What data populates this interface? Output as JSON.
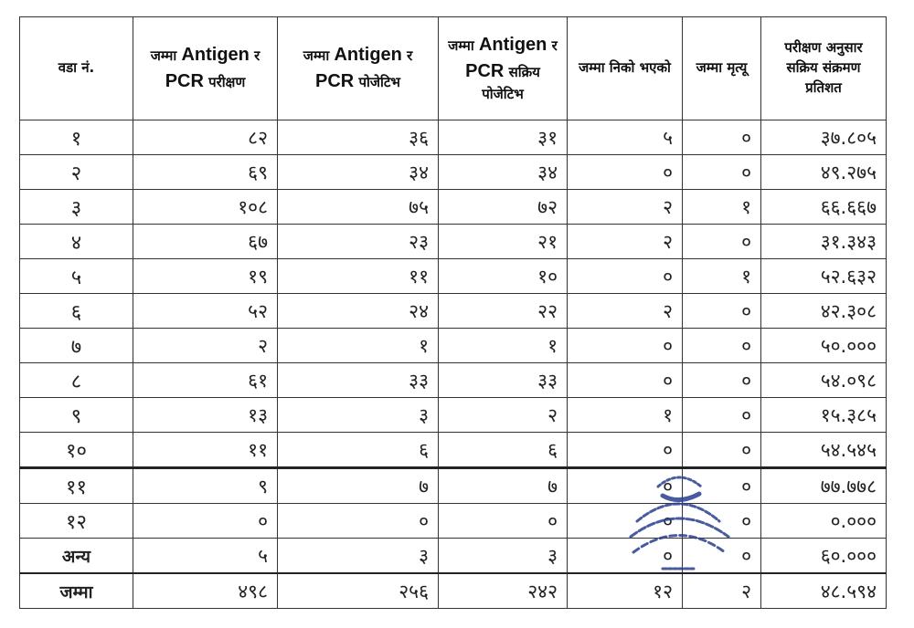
{
  "headers": [
    "वडा नं.",
    "जम्मा Antigen र PCR परीक्षण",
    "जम्मा Antigen र PCR पोजेटिभ",
    "जम्मा Antigen र PCR सक्रिय पोजेटिभ",
    "जम्मा निको भएको",
    "जम्मा मृत्यू",
    "परीक्षण अनुसार सक्रिय संक्रमण प्रतिशत"
  ],
  "rows": [
    [
      "१",
      "८२",
      "३६",
      "३१",
      "५",
      "०",
      "३७.८०५"
    ],
    [
      "२",
      "६९",
      "३४",
      "३४",
      "०",
      "०",
      "४९.२७५"
    ],
    [
      "३",
      "१०८",
      "७५",
      "७२",
      "२",
      "१",
      "६६.६६७"
    ],
    [
      "४",
      "६७",
      "२३",
      "२१",
      "२",
      "०",
      "३१.३४३"
    ],
    [
      "५",
      "१९",
      "११",
      "१०",
      "०",
      "१",
      "५२.६३२"
    ],
    [
      "६",
      "५२",
      "२४",
      "२२",
      "२",
      "०",
      "४२.३०८"
    ],
    [
      "७",
      "२",
      "१",
      "१",
      "०",
      "०",
      "५०.०००"
    ],
    [
      "८",
      "६१",
      "३३",
      "३३",
      "०",
      "०",
      "५४.०९८"
    ],
    [
      "९",
      "१३",
      "३",
      "२",
      "१",
      "०",
      "१५.३८५"
    ],
    [
      "१०",
      "११",
      "६",
      "६",
      "०",
      "०",
      "५४.५४५"
    ],
    [
      "११",
      "९",
      "७",
      "७",
      "०",
      "०",
      "७७.७७८"
    ],
    [
      "१२",
      "०",
      "०",
      "०",
      "०",
      "०",
      "०.०००"
    ],
    [
      "अन्य",
      "५",
      "३",
      "३",
      "०",
      "०",
      "६०.०००"
    ]
  ],
  "total": [
    "जम्मा",
    "४९८",
    "२५६",
    "२४२",
    "१२",
    "२",
    "४८.५९४"
  ],
  "stamp_color": "#2a3f8f"
}
